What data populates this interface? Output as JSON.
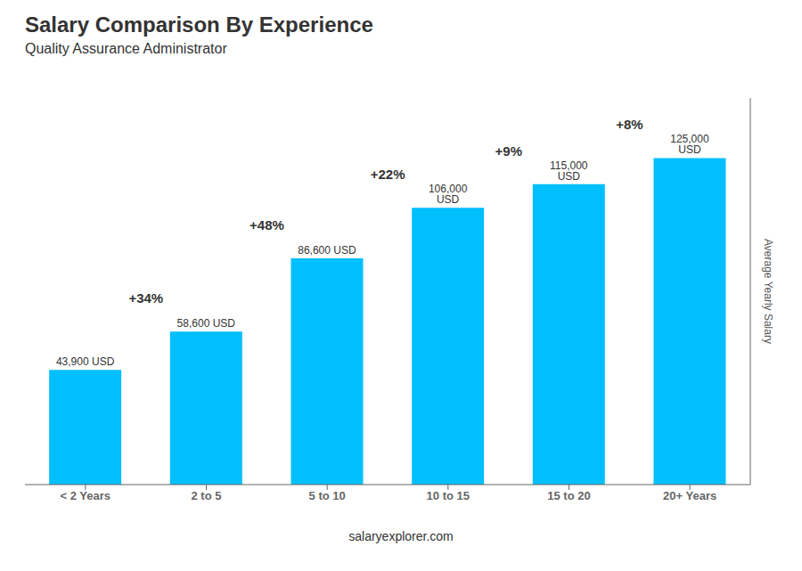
{
  "chart_data": {
    "type": "bar",
    "title": "Salary Comparison By Experience",
    "subtitle": "Quality Assurance Administrator",
    "categories": [
      "< 2 Years",
      "2 to 5",
      "5 to 10",
      "10 to 15",
      "15 to 20",
      "20+ Years"
    ],
    "values": [
      43900,
      58600,
      86600,
      106000,
      115000,
      125000
    ],
    "value_labels": [
      "43,900 USD",
      "58,600 USD",
      "86,600 USD",
      "106,000 USD",
      "115,000 USD",
      "125,000 USD"
    ],
    "annotations": [
      "+34%",
      "+48%",
      "+22%",
      "+9%",
      "+8%"
    ],
    "ylabel": "Average Yearly Salary",
    "footer": "salaryexplorer.com",
    "color": "#00BFFF",
    "ylim": [
      0,
      148000
    ],
    "grid": false,
    "tick_labels": "x"
  }
}
